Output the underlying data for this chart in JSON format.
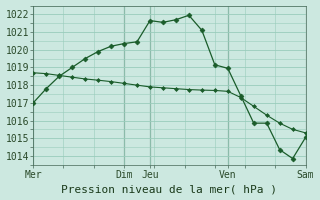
{
  "title": "Pression niveau de la mer( hPa )",
  "bg_color": "#cce8e0",
  "grid_color": "#99ccbb",
  "line_color": "#1a5c2a",
  "ylim": [
    1013.5,
    1022.5
  ],
  "yticks": [
    1014,
    1015,
    1016,
    1017,
    1018,
    1019,
    1020,
    1021,
    1022
  ],
  "xtick_labels": [
    "Mer",
    "Dim",
    "Jeu",
    "Ven",
    "Sam"
  ],
  "xtick_positions": [
    0,
    7,
    9,
    15,
    21
  ],
  "vlines": [
    0,
    7,
    9,
    15,
    21
  ],
  "series1_x": [
    0,
    1,
    2,
    3,
    4,
    5,
    6,
    7,
    8,
    9,
    10,
    11,
    12,
    13,
    14,
    15,
    16,
    17,
    18,
    19,
    20,
    21
  ],
  "series1_y": [
    1017.0,
    1017.8,
    1018.5,
    1019.0,
    1019.5,
    1019.9,
    1020.2,
    1020.35,
    1020.45,
    1021.65,
    1021.55,
    1021.7,
    1021.95,
    1021.1,
    1019.15,
    1018.95,
    1017.4,
    1015.85,
    1015.85,
    1014.35,
    1013.85,
    1015.05
  ],
  "series2_x": [
    0,
    1,
    2,
    3,
    4,
    5,
    6,
    7,
    8,
    9,
    10,
    11,
    12,
    13,
    14,
    15,
    16,
    17,
    18,
    19,
    20,
    21
  ],
  "series2_y": [
    1018.7,
    1018.65,
    1018.55,
    1018.45,
    1018.35,
    1018.28,
    1018.2,
    1018.1,
    1018.0,
    1017.9,
    1017.85,
    1017.8,
    1017.75,
    1017.72,
    1017.7,
    1017.65,
    1017.3,
    1016.8,
    1016.3,
    1015.85,
    1015.5,
    1015.3
  ],
  "tick_fontsize": 7,
  "title_fontsize": 8
}
